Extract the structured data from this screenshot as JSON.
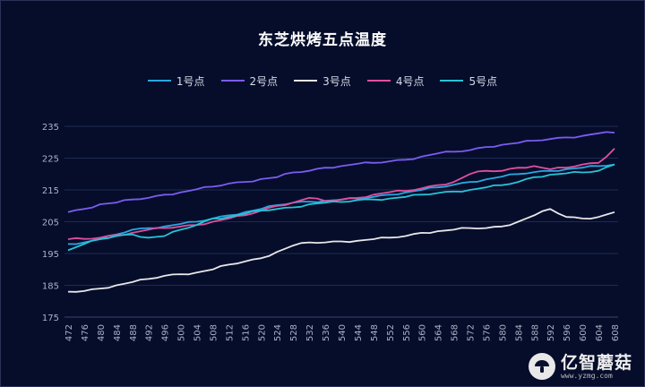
{
  "chart_data": {
    "type": "line",
    "title": "东芝烘烤五点温度",
    "categories": [
      "472",
      "476",
      "480",
      "484",
      "488",
      "492",
      "496",
      "500",
      "504",
      "508",
      "512",
      "516",
      "520",
      "524",
      "528",
      "532",
      "536",
      "540",
      "544",
      "548",
      "552",
      "556",
      "560",
      "564",
      "568",
      "572",
      "576",
      "580",
      "584",
      "588",
      "592",
      "596",
      "600",
      "604",
      "608"
    ],
    "ylim": [
      175,
      235
    ],
    "yticks": [
      175,
      185,
      195,
      205,
      215,
      225,
      235
    ],
    "grid": true,
    "legend_position": "top",
    "series": [
      {
        "name": "1号点",
        "color": "#29a8e0",
        "values": [
          198,
          198.5,
          199.5,
          201,
          202.5,
          203,
          203.5,
          204.3,
          205,
          206,
          207,
          208,
          209,
          210.2,
          211,
          211.3,
          211.6,
          211.9,
          212.3,
          212.8,
          213.5,
          214.2,
          215,
          215.8,
          216.6,
          217.5,
          218.3,
          219.2,
          220,
          220.6,
          221,
          221.5,
          222,
          222.5,
          223
        ]
      },
      {
        "name": "2号点",
        "color": "#7b5cf0",
        "values": [
          208,
          209,
          210.5,
          211,
          212,
          212.5,
          213.5,
          214.2,
          215.2,
          216,
          217,
          217.5,
          218.4,
          219,
          220.5,
          221,
          222,
          222.5,
          223.2,
          223.5,
          224,
          224.5,
          225.5,
          226.5,
          227,
          227.5,
          228.5,
          229.2,
          229.8,
          230.5,
          231,
          231.5,
          232,
          232.8,
          233
        ]
      },
      {
        "name": "3号点",
        "color": "#e8e8e8",
        "values": [
          183,
          183.2,
          184,
          185,
          186,
          187,
          188,
          188.5,
          189,
          190,
          191.5,
          192.5,
          193.5,
          195.5,
          197.5,
          198.5,
          198.5,
          198.8,
          199,
          199.5,
          200,
          200.5,
          201.5,
          202,
          202.5,
          203,
          203,
          203.5,
          205,
          207,
          209,
          206.5,
          206,
          206.5,
          208
        ]
      },
      {
        "name": "4号点",
        "color": "#e04f9f",
        "values": [
          199.5,
          199.6,
          200,
          200.8,
          201.5,
          202.5,
          203,
          203.5,
          204,
          205,
          206,
          207,
          208.5,
          210,
          211,
          212.5,
          211.5,
          212,
          212.5,
          213.5,
          214.3,
          214.7,
          215.5,
          216.5,
          217.5,
          220,
          221,
          221,
          222,
          222.5,
          221.5,
          222,
          223,
          223.5,
          228
        ]
      },
      {
        "name": "5号点",
        "color": "#26c3d6",
        "values": [
          196,
          198,
          199.5,
          200.5,
          201,
          200,
          200.5,
          202.5,
          204,
          206,
          206.5,
          207.5,
          208.5,
          209,
          209.5,
          210.5,
          211,
          211.2,
          211.8,
          212,
          212.3,
          212.8,
          213.5,
          214,
          214.5,
          215,
          215.8,
          216.5,
          217.5,
          219,
          219.8,
          220.2,
          220.5,
          221,
          223
        ]
      }
    ]
  }
}
